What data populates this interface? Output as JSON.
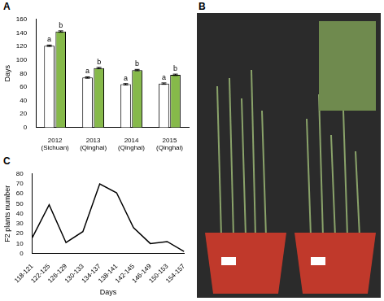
{
  "chart_data": [
    {
      "type": "bar",
      "panel_label": "A",
      "categories": [
        "2012(Sichuan)",
        "2013(Qinghai)",
        "2014(Qinghai)",
        "2015(Qinghai)"
      ],
      "series": [
        {
          "color": "#ffffff",
          "values": [
            121,
            74,
            64,
            65
          ],
          "errors": [
            1,
            1,
            1,
            1
          ],
          "annotations": [
            "a",
            "a",
            "a",
            "a"
          ]
        },
        {
          "color": "#86b94a",
          "values": [
            142,
            88,
            85,
            78
          ],
          "errors": [
            1,
            1,
            1,
            1
          ],
          "annotations": [
            "b",
            "b",
            "b",
            "b"
          ]
        }
      ],
      "y_label": "Days",
      "ylim": [
        0,
        160
      ],
      "yticks": [
        0,
        20,
        40,
        60,
        80,
        100,
        120,
        140,
        160
      ],
      "grid": false
    },
    {
      "type": "line",
      "panel_label": "C",
      "categories": [
        "118-121",
        "122-125",
        "126-129",
        "130-133",
        "134-137",
        "138-141",
        "142-145",
        "146-149",
        "150-153",
        "154-157"
      ],
      "values": [
        16,
        49,
        11,
        22,
        70,
        61,
        26,
        10,
        12,
        2
      ],
      "color": "#000000",
      "line_style": "solid",
      "x_label": "Days",
      "y_label": "F2 plants number",
      "ylim": [
        0,
        80
      ],
      "yticks": [
        0,
        10,
        20,
        30,
        40,
        50,
        60,
        70,
        80
      ],
      "grid": false
    }
  ],
  "photo": {
    "panel_label": "B"
  }
}
